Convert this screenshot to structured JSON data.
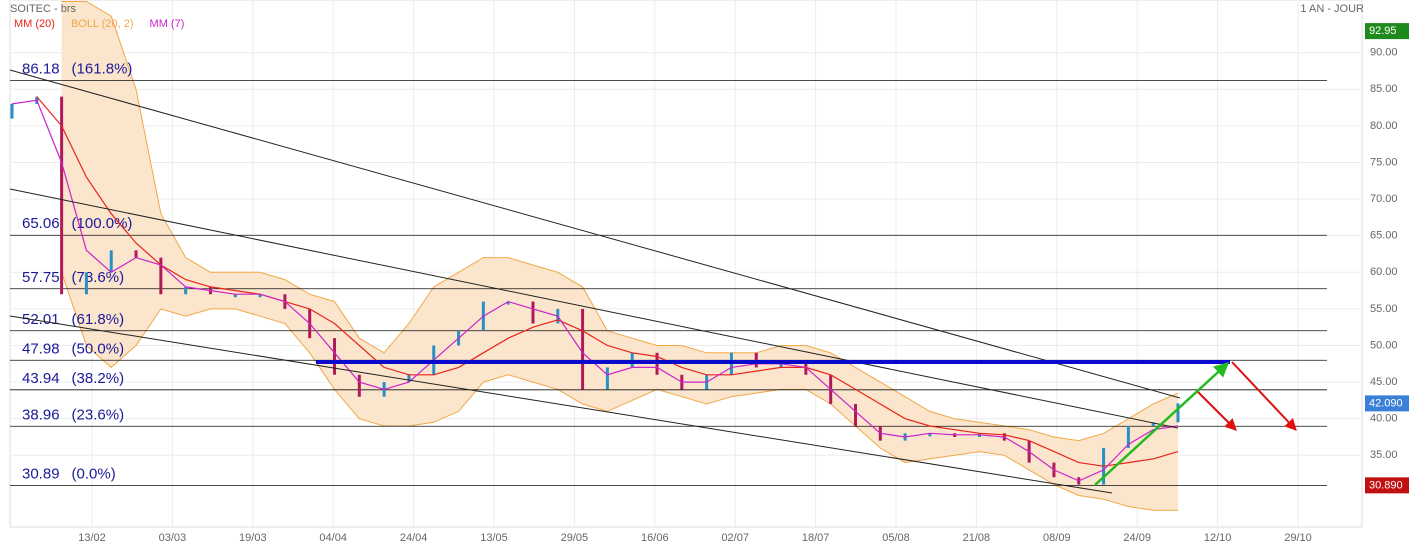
{
  "chart_data": {
    "type": "ohlc",
    "title": "SOITEC - brs",
    "period": "1 AN - JOUR",
    "x_labels": [
      "13/02",
      "03/03",
      "19/03",
      "04/04",
      "24/04",
      "13/05",
      "29/05",
      "16/06",
      "02/07",
      "18/07",
      "05/08",
      "21/08",
      "08/09",
      "24/09",
      "12/10",
      "29/10"
    ],
    "ylim": [
      25.2,
      97.2
    ],
    "yticks": [
      {
        "value": 35,
        "label": "35.00"
      },
      {
        "value": 40,
        "label": "40.00"
      },
      {
        "value": 45,
        "label": "45.00"
      },
      {
        "value": 50,
        "label": "50.00"
      },
      {
        "value": 55,
        "label": "55.00"
      },
      {
        "value": 60,
        "label": "60.00"
      },
      {
        "value": 65,
        "label": "65.00"
      },
      {
        "value": 70,
        "label": "70.00"
      },
      {
        "value": 75,
        "label": "75.00"
      },
      {
        "value": 80,
        "label": "80.00"
      },
      {
        "value": 85,
        "label": "85.00"
      },
      {
        "value": 90,
        "label": "90.00"
      }
    ],
    "grid": true,
    "price": {
      "up_color": "#2a8fc4",
      "down_color": "#b01a5a",
      "open": [
        81,
        83,
        84,
        57,
        60,
        63,
        62,
        57,
        58,
        57,
        57,
        57,
        55,
        51,
        46,
        43,
        45,
        46,
        50,
        52,
        56,
        56,
        53,
        55,
        44,
        47,
        49,
        46,
        44,
        46,
        49,
        47,
        48,
        46,
        42,
        39,
        37,
        38,
        38,
        37.5,
        38,
        37,
        34,
        32,
        31,
        36,
        39,
        39.5
      ],
      "close": [
        83,
        84,
        57,
        60,
        63,
        62,
        57,
        58,
        57,
        57,
        57,
        55,
        51,
        46,
        43,
        45,
        46,
        50,
        52,
        56,
        56,
        53,
        55,
        44,
        47,
        49,
        46,
        44,
        46,
        49,
        47,
        48,
        46,
        42,
        39,
        37,
        38,
        38,
        37.5,
        38,
        37,
        34,
        32,
        31,
        36,
        39,
        39.5,
        42.09
      ]
    },
    "series": [
      {
        "name": "MM (20)",
        "color": "#e8251c",
        "values": [
          null,
          84,
          80,
          73,
          68,
          64,
          61,
          59,
          58,
          57.5,
          57,
          56,
          55,
          53,
          50,
          47,
          46,
          46,
          47,
          49,
          51,
          52.5,
          53.5,
          52,
          50,
          49,
          48.5,
          47,
          46,
          46,
          46.5,
          47,
          47,
          46,
          44,
          42,
          40,
          39,
          38.5,
          38,
          37.8,
          37,
          35.5,
          34,
          33.5,
          34,
          34.5,
          35.5
        ]
      },
      {
        "name": "BOLL (20, 2)",
        "color": "#f0a848",
        "fill": "#fbe5cc",
        "upper": [
          null,
          null,
          97,
          97,
          95,
          85,
          68,
          62,
          60,
          60,
          60,
          59,
          57,
          56,
          51,
          49,
          53,
          58,
          60,
          62,
          62,
          61,
          60,
          58,
          52,
          51,
          50,
          50,
          49,
          49,
          49,
          50,
          50,
          49,
          47,
          45,
          43,
          41,
          40,
          39.5,
          39,
          38.5,
          37.5,
          37,
          38,
          40,
          42,
          43.5
        ],
        "lower": [
          null,
          null,
          60,
          50,
          47,
          50,
          55,
          54,
          55,
          55,
          54,
          53,
          49,
          44,
          40,
          39,
          39,
          39.5,
          41,
          45,
          46,
          45,
          44,
          42,
          41,
          42.5,
          44,
          43,
          42,
          43,
          43.5,
          44,
          44,
          42,
          39,
          36,
          34,
          34.5,
          35,
          35.5,
          35,
          33,
          31,
          29.5,
          29,
          28,
          27.5,
          27.5
        ]
      },
      {
        "name": "MM (7)",
        "color": "#cc22cc",
        "values": [
          83,
          83.5,
          75,
          63,
          60,
          62,
          61,
          58,
          57.5,
          57,
          57,
          56,
          53,
          49,
          45,
          44,
          45,
          48,
          51,
          54,
          56,
          55,
          54,
          49,
          46,
          47,
          47,
          45,
          45,
          47,
          47.5,
          47.5,
          47,
          44,
          41,
          38,
          37.5,
          38,
          37.8,
          37.8,
          37.5,
          35.5,
          33,
          31.5,
          33,
          36.5,
          38.5,
          39
        ]
      }
    ],
    "fib_levels": [
      {
        "value": 86.18,
        "label": "(161.8%)"
      },
      {
        "value": 65.06,
        "label": "(100.0%)"
      },
      {
        "value": 57.75,
        "label": "(78.6%)"
      },
      {
        "value": 52.01,
        "label": "(61.8%)"
      },
      {
        "value": 47.98,
        "label": "(50.0%)"
      },
      {
        "value": 43.94,
        "label": "(38.2%)"
      },
      {
        "value": 38.96,
        "label": "(23.6%)"
      },
      {
        "value": 30.89,
        "label": "(0.0%)"
      }
    ],
    "price_tags": [
      {
        "value": 92.95,
        "label": "92.95",
        "color": "#1e8a1e"
      },
      {
        "value": 42.09,
        "label": "42.090",
        "color": "#3a7fd8"
      },
      {
        "value": 30.89,
        "label": "30.890",
        "color": "#c01010"
      }
    ]
  }
}
